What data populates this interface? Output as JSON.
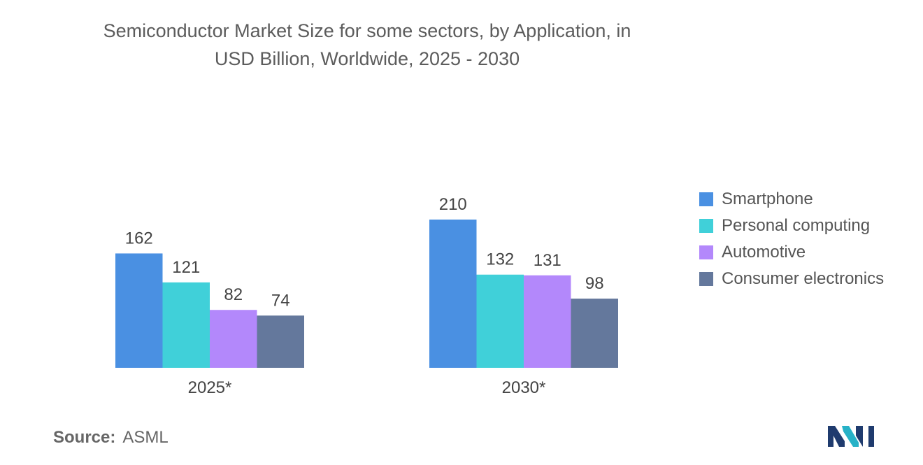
{
  "chart_data": {
    "type": "bar",
    "title_lines": [
      "Semiconductor Market Size for some sectors, by Application, in",
      "USD Billion, Worldwide, 2025 - 2030"
    ],
    "categories": [
      "2025*",
      "2030*"
    ],
    "series": [
      {
        "name": "Smartphone",
        "color": "#4a90e2",
        "values": [
          162,
          210
        ]
      },
      {
        "name": "Personal computing",
        "color": "#40d0d9",
        "values": [
          121,
          132
        ]
      },
      {
        "name": "Automotive",
        "color": "#b388fb",
        "values": [
          82,
          131
        ]
      },
      {
        "name": "Consumer electronics",
        "color": "#64789c",
        "values": [
          74,
          98
        ]
      }
    ],
    "ylim": [
      0,
      210
    ],
    "grid": false,
    "legend_position": "right",
    "data_labels": true
  },
  "source": {
    "label": "Source:",
    "value": "ASML"
  },
  "logo": {
    "icon": "mordor-intelligence-logo-icon",
    "colors": [
      "#1f3b6e",
      "#27b2c7"
    ]
  }
}
